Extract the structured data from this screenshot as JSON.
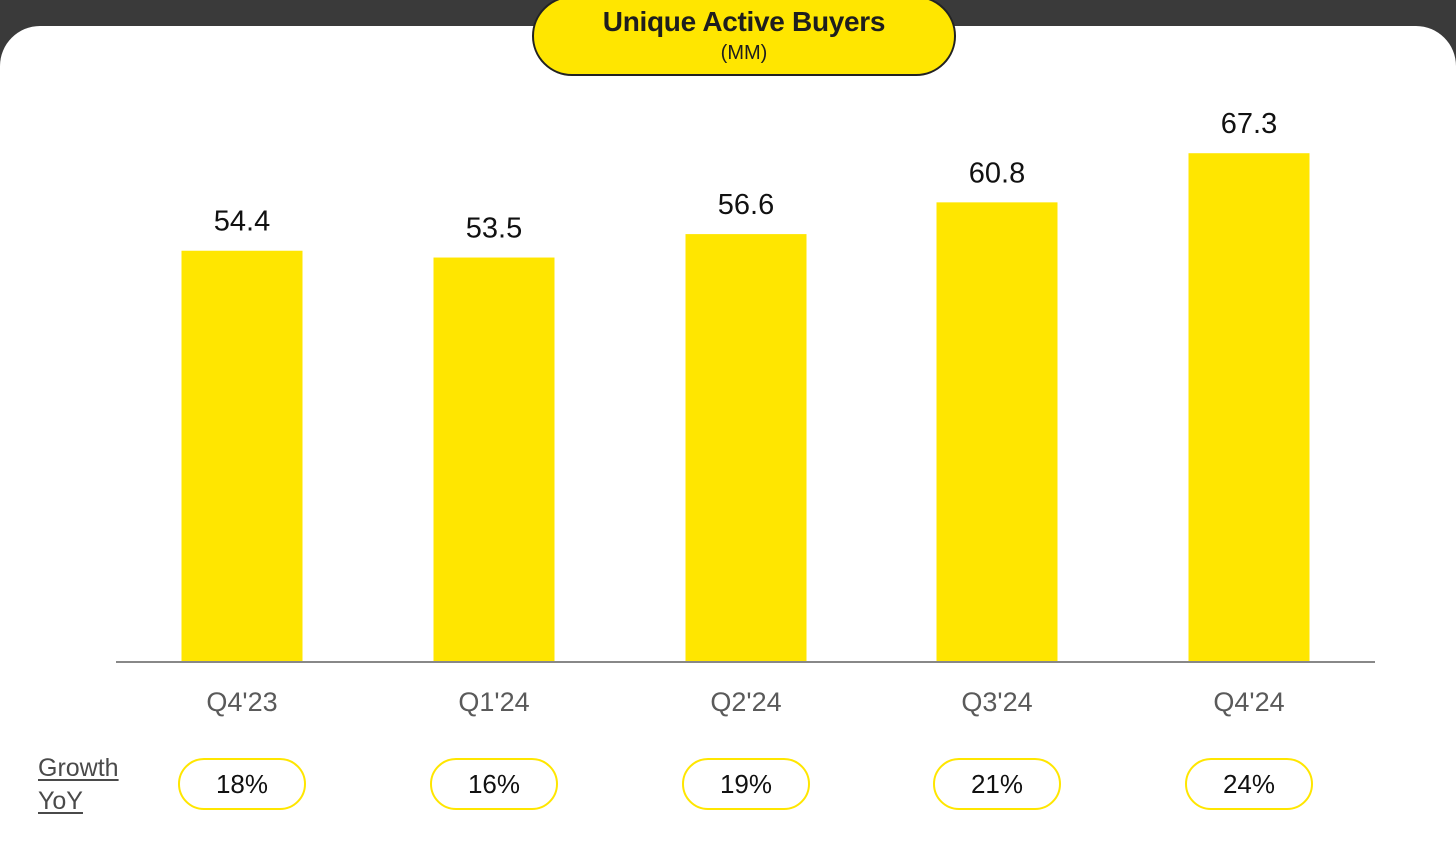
{
  "title": "Unique Active Buyers",
  "subtitle": "(MM)",
  "growth_label_line1": "Growth",
  "growth_label_line2": "YoY",
  "colors": {
    "bar": "#FFE600",
    "axis": "#888888",
    "background": "#ffffff",
    "frame": "#3a3a3a"
  },
  "chart_data": {
    "type": "bar",
    "title": "Unique Active Buyers",
    "subtitle": "(MM)",
    "categories": [
      "Q4'23",
      "Q1'24",
      "Q2'24",
      "Q3'24",
      "Q4'24"
    ],
    "values": [
      54.4,
      53.5,
      56.6,
      60.8,
      67.3
    ],
    "value_labels": [
      "54.4",
      "53.5",
      "56.6",
      "60.8",
      "67.3"
    ],
    "growth_yoy": [
      "18%",
      "16%",
      "19%",
      "21%",
      "24%"
    ],
    "ylim": [
      0,
      75
    ],
    "grid": false,
    "legend": "none"
  }
}
